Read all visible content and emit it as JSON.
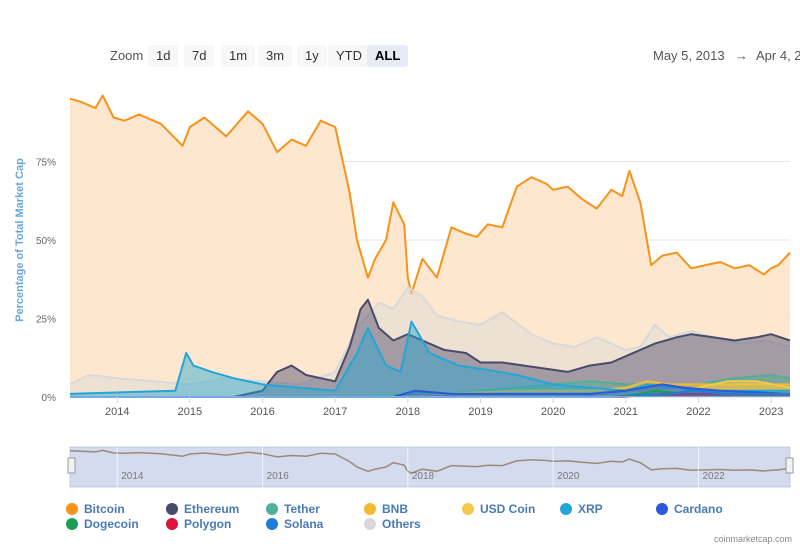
{
  "toolbar": {
    "zoom_label": "Zoom",
    "buttons": [
      "1d",
      "7d",
      "1m",
      "3m",
      "1y",
      "YTD",
      "ALL"
    ],
    "active_button": "ALL",
    "range_start": "May 5, 2013",
    "range_arrow": "→",
    "range_end": "Apr 4, 2"
  },
  "credit": "coinmarketcap.com",
  "navigator": {
    "tick_labels": [
      "2014",
      "2016",
      "2018",
      "2020",
      "2022"
    ]
  },
  "chart_data": {
    "type": "area",
    "title": "",
    "xlabel": "",
    "ylabel": "Percentage of Total Market Cap",
    "x_tick_labels": [
      "2014",
      "2015",
      "2016",
      "2017",
      "2018",
      "2019",
      "2020",
      "2021",
      "2022",
      "2023"
    ],
    "y_tick_labels": [
      "0%",
      "25%",
      "50%",
      "75%"
    ],
    "ylim": [
      0,
      100
    ],
    "xlim": [
      2013.35,
      2023.26
    ],
    "grid": true,
    "legend_position": "bottom",
    "series": [
      {
        "name": "Bitcoin",
        "color": "#f7931a",
        "fill": "#fde3c6",
        "x": [
          2013.35,
          2013.5,
          2013.7,
          2013.8,
          2013.95,
          2014.1,
          2014.3,
          2014.6,
          2014.9,
          2015.0,
          2015.2,
          2015.5,
          2015.8,
          2016.0,
          2016.2,
          2016.4,
          2016.6,
          2016.8,
          2017.0,
          2017.2,
          2017.3,
          2017.45,
          2017.55,
          2017.7,
          2017.8,
          2017.95,
          2018.0,
          2018.05,
          2018.2,
          2018.4,
          2018.6,
          2018.8,
          2018.95,
          2019.1,
          2019.3,
          2019.5,
          2019.7,
          2019.9,
          2020.0,
          2020.2,
          2020.4,
          2020.6,
          2020.8,
          2020.95,
          2021.05,
          2021.2,
          2021.35,
          2021.5,
          2021.7,
          2021.9,
          2022.1,
          2022.3,
          2022.5,
          2022.7,
          2022.9,
          2023.0,
          2023.1,
          2023.26
        ],
        "values": [
          95,
          94,
          92,
          96,
          89,
          88,
          90,
          87,
          80,
          86,
          89,
          83,
          91,
          87,
          78,
          82,
          80,
          88,
          86,
          65,
          50,
          38,
          44,
          50,
          62,
          55,
          38,
          33,
          44,
          38,
          54,
          52,
          51,
          55,
          54,
          67,
          70,
          68,
          66,
          67,
          63,
          60,
          66,
          64,
          72,
          62,
          42,
          45,
          46,
          41,
          42,
          43,
          41,
          42,
          39,
          41,
          42,
          46
        ]
      },
      {
        "name": "Ethereum",
        "color": "#4a4a6a",
        "x": [
          2013.35,
          2015.6,
          2016.0,
          2016.2,
          2016.4,
          2016.6,
          2016.8,
          2017.0,
          2017.2,
          2017.35,
          2017.45,
          2017.6,
          2017.8,
          2018.0,
          2018.2,
          2018.5,
          2018.8,
          2019.0,
          2019.3,
          2019.6,
          2019.9,
          2020.2,
          2020.5,
          2020.8,
          2021.0,
          2021.2,
          2021.4,
          2021.7,
          2021.9,
          2022.2,
          2022.5,
          2022.8,
          2023.0,
          2023.26
        ],
        "values": [
          0,
          0,
          2,
          8,
          10,
          7,
          6,
          5,
          16,
          28,
          31,
          22,
          18,
          20,
          18,
          15,
          14,
          11,
          11,
          10,
          9,
          8,
          10,
          11,
          13,
          15,
          17,
          19,
          20,
          19,
          18,
          19,
          20,
          18
        ]
      },
      {
        "name": "Tether",
        "color": "#50af95",
        "x": [
          2013.35,
          2017.5,
          2018.0,
          2018.5,
          2019.0,
          2019.5,
          2020.0,
          2020.5,
          2021.0,
          2021.5,
          2022.0,
          2022.5,
          2023.0,
          2023.26
        ],
        "values": [
          0,
          0,
          1,
          1,
          2,
          3,
          4,
          5,
          4,
          4,
          4,
          6,
          7,
          6
        ]
      },
      {
        "name": "BNB",
        "color": "#f3ba2f",
        "x": [
          2013.35,
          2017.6,
          2018.5,
          2019.5,
          2020.5,
          2021.0,
          2021.3,
          2021.6,
          2022.0,
          2022.5,
          2023.0,
          2023.26
        ],
        "values": [
          0,
          0,
          1,
          2,
          2,
          3,
          5,
          4,
          4,
          4,
          4,
          4
        ]
      },
      {
        "name": "USD Coin",
        "color": "#f2c94c",
        "x": [
          2013.35,
          2018.8,
          2020.5,
          2021.0,
          2021.5,
          2022.0,
          2022.4,
          2022.8,
          2023.26
        ],
        "values": [
          0,
          0,
          0,
          1,
          2,
          3,
          5,
          5,
          3
        ]
      },
      {
        "name": "XRP",
        "color": "#23a6d5",
        "x": [
          2013.35,
          2014.8,
          2014.95,
          2015.05,
          2015.3,
          2015.6,
          2016.0,
          2016.5,
          2017.0,
          2017.3,
          2017.45,
          2017.7,
          2017.9,
          2018.05,
          2018.3,
          2018.7,
          2019.0,
          2019.5,
          2020.0,
          2020.5,
          2021.0,
          2021.3,
          2021.7,
          2022.0,
          2022.5,
          2023.0,
          2023.26
        ],
        "values": [
          1,
          2,
          14,
          10,
          8,
          6,
          4,
          3,
          2,
          14,
          22,
          10,
          8,
          24,
          14,
          10,
          9,
          7,
          4,
          3,
          2,
          4,
          3,
          2,
          2,
          2,
          2
        ]
      },
      {
        "name": "Cardano",
        "color": "#2a5ada",
        "x": [
          2013.35,
          2017.8,
          2018.1,
          2018.6,
          2019.5,
          2020.5,
          2021.0,
          2021.5,
          2021.8,
          2022.3,
          2023.26
        ],
        "values": [
          0,
          0,
          2,
          1,
          1,
          1,
          2,
          4,
          3,
          2,
          1
        ]
      },
      {
        "name": "Dogecoin",
        "color": "#1a9e55",
        "x": [
          2013.35,
          2020.8,
          2021.2,
          2021.4,
          2021.8,
          2022.5,
          2023.26
        ],
        "values": [
          0,
          0,
          1,
          2,
          1,
          1,
          1
        ]
      },
      {
        "name": "Polygon",
        "color": "#dc143c",
        "x": [
          2013.35,
          2021.0,
          2021.5,
          2022.0,
          2022.5,
          2023.26
        ],
        "values": [
          0,
          0,
          1,
          1,
          1,
          1
        ]
      },
      {
        "name": "Solana",
        "color": "#1e7fd8",
        "x": [
          2013.35,
          2020.8,
          2021.6,
          2021.9,
          2022.4,
          2023.26
        ],
        "values": [
          0,
          0,
          1,
          2,
          1,
          1
        ]
      },
      {
        "name": "Others",
        "color": "#d9d9d9",
        "x": [
          2013.35,
          2013.6,
          2014.0,
          2014.5,
          2015.0,
          2015.5,
          2016.0,
          2016.5,
          2017.0,
          2017.3,
          2017.6,
          2017.8,
          2018.0,
          2018.2,
          2018.4,
          2018.7,
          2019.0,
          2019.3,
          2019.7,
          2020.0,
          2020.3,
          2020.6,
          2021.0,
          2021.2,
          2021.4,
          2021.6,
          2021.9,
          2022.2,
          2022.6,
          2022.9,
          2023.26
        ],
        "values": [
          4,
          7,
          6,
          5,
          4,
          6,
          5,
          4,
          8,
          22,
          30,
          28,
          35,
          32,
          26,
          24,
          23,
          27,
          20,
          17,
          16,
          19,
          15,
          16,
          23,
          19,
          21,
          19,
          17,
          18,
          16
        ]
      }
    ]
  }
}
